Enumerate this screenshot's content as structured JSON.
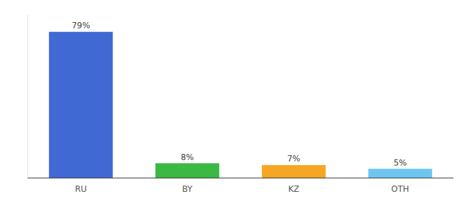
{
  "chart_data": {
    "type": "bar",
    "categories": [
      "RU",
      "BY",
      "KZ",
      "OTH"
    ],
    "values": [
      79,
      8,
      7,
      5
    ],
    "value_labels": [
      "79%",
      "8%",
      "7%",
      "5%"
    ],
    "colors": [
      "#4169d4",
      "#3cb844",
      "#f5a623",
      "#6ec6f0"
    ],
    "ylim": [
      0,
      88
    ],
    "data_labels": true,
    "tick_labels": "x",
    "grid": false
  }
}
